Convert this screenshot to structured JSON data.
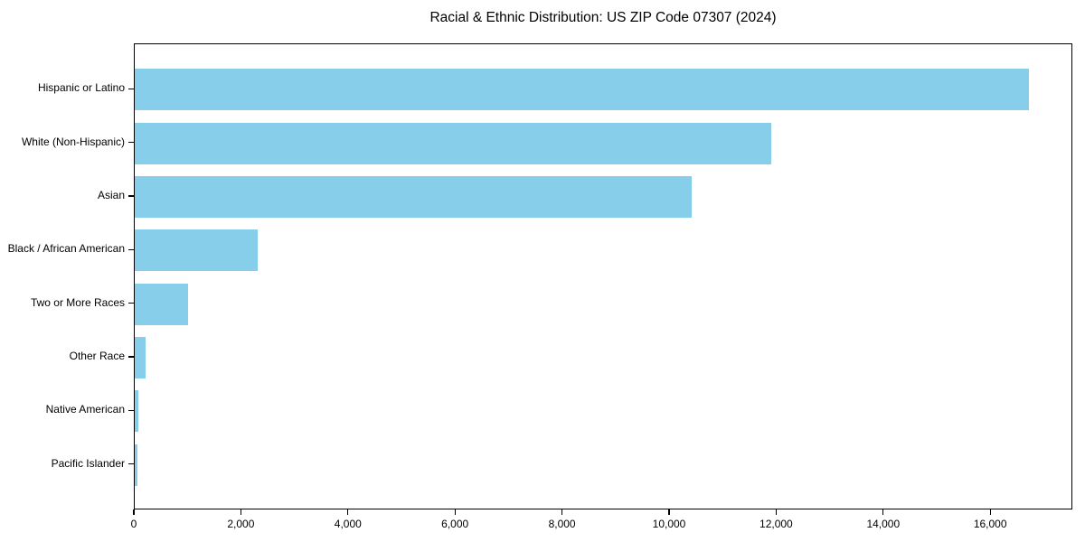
{
  "title": "Racial & Ethnic Distribution: US ZIP Code 07307 (2024)",
  "chart_data": {
    "type": "bar",
    "orientation": "horizontal",
    "title": "Racial & Ethnic Distribution: US ZIP Code 07307 (2024)",
    "xlabel": "",
    "ylabel": "",
    "categories": [
      "Hispanic or Latino",
      "White (Non-Hispanic)",
      "Asian",
      "Black / African American",
      "Two or More Races",
      "Other Race",
      "Native American",
      "Pacific Islander"
    ],
    "values": [
      16700,
      11900,
      10400,
      2300,
      1000,
      200,
      60,
      50
    ],
    "xlim": [
      0,
      17500
    ],
    "x_ticks": [
      0,
      2000,
      4000,
      6000,
      8000,
      10000,
      12000,
      14000,
      16000
    ],
    "x_tick_labels": [
      "0",
      "2,000",
      "4,000",
      "6,000",
      "8,000",
      "10,000",
      "12,000",
      "14,000",
      "16,000"
    ],
    "bar_color": "#87CEEB",
    "axis_color": "#000000",
    "background_color": "#ffffff",
    "grid": false,
    "legend": null
  }
}
